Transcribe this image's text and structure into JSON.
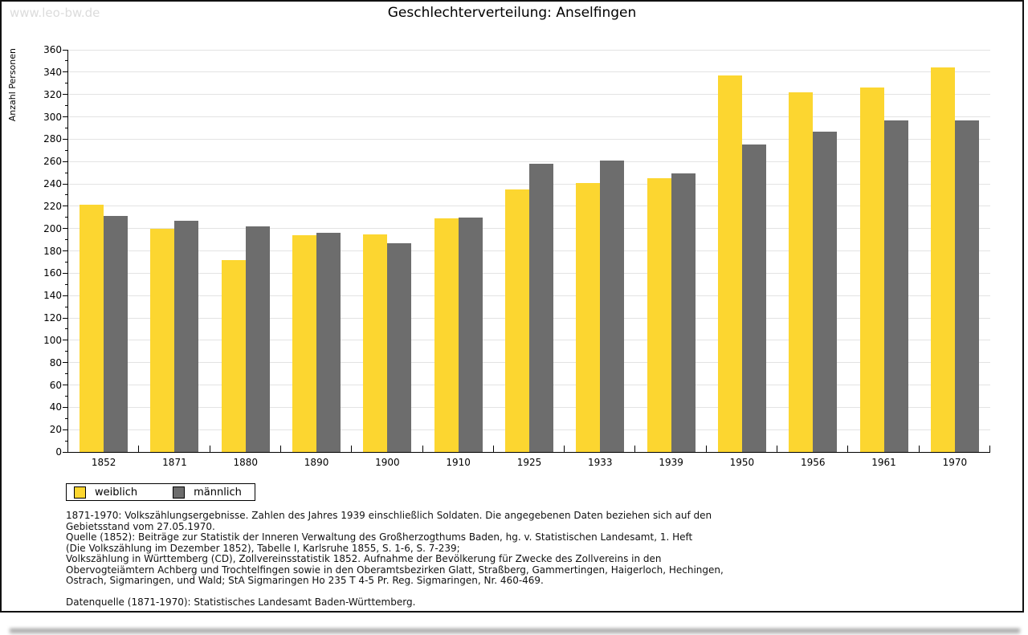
{
  "page": {
    "watermark": "www.leo-bw.de",
    "title": "Geschlechterverteilung: Anselfingen"
  },
  "chart_data": {
    "type": "bar",
    "title": "Geschlechterverteilung: Anselfingen",
    "xlabel": "",
    "ylabel": "Anzahl Personen",
    "ylim": [
      0,
      360
    ],
    "ytick_step": 20,
    "ytick_minor_step": 10,
    "grid": true,
    "legend_position": "bottom-left",
    "categories": [
      "1852",
      "1871",
      "1880",
      "1890",
      "1900",
      "1910",
      "1925",
      "1933",
      "1939",
      "1950",
      "1956",
      "1961",
      "1970"
    ],
    "series": [
      {
        "name": "weiblich",
        "color": "#FCD630",
        "values": [
          221,
          200,
          172,
          194,
          195,
          209,
          235,
          241,
          245,
          337,
          322,
          326,
          344
        ]
      },
      {
        "name": "männlich",
        "color": "#6D6D6D",
        "values": [
          211,
          207,
          202,
          196,
          187,
          210,
          258,
          261,
          249,
          275,
          287,
          297,
          297
        ]
      }
    ]
  },
  "footer": {
    "lines": [
      "1871-1970: Volkszählungsergebnisse. Zahlen des Jahres 1939 einschließlich Soldaten. Die angegebenen Daten beziehen sich auf den",
      "Gebietsstand vom 27.05.1970.",
      "Quelle (1852): Beiträge zur Statistik der Inneren Verwaltung des Großherzogthums Baden, hg. v. Statistischen Landesamt, 1. Heft",
      "(Die Volkszählung im Dezember 1852), Tabelle I, Karlsruhe 1855, S. 1-6, S. 7-239;",
      "Volkszählung in Württemberg (CD), Zollvereinsstatistik 1852. Aufnahme der Bevölkerung für Zwecke des Zollvereins in den",
      "Obervogteiämtern Achberg und Trochtelfingen sowie in den Oberamtsbezirken Glatt, Straßberg, Gammertingen, Haigerloch, Hechingen,",
      "Ostrach, Sigmaringen, und Wald; StA Sigmaringen Ho 235 T 4-5 Pr. Reg. Sigmaringen, Nr. 460-469."
    ],
    "datasource": "Datenquelle (1871-1970): Statistisches Landesamt Baden-Württemberg."
  }
}
